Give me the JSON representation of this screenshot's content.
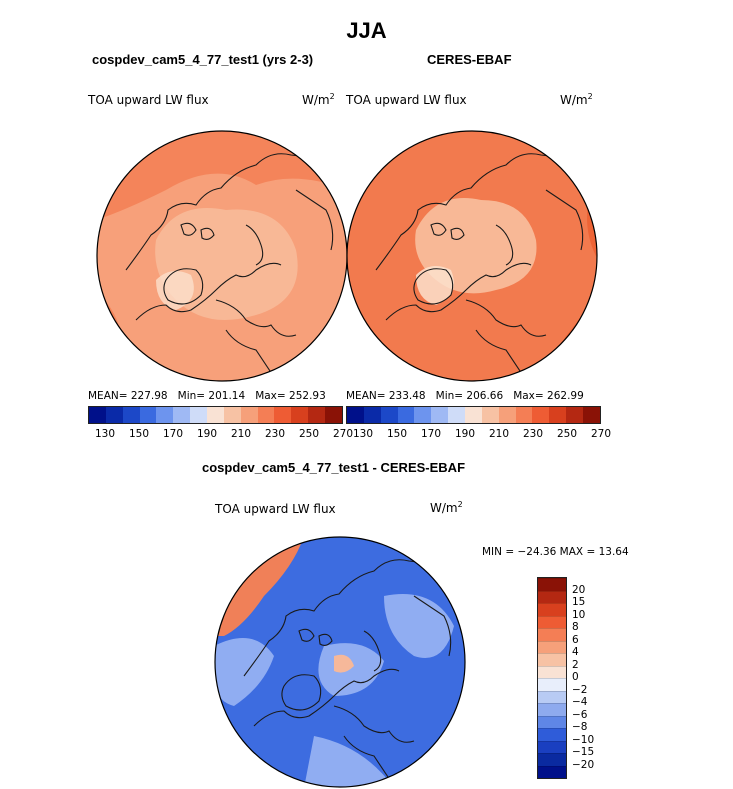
{
  "page": {
    "season": "JJA"
  },
  "panels": {
    "model": {
      "title": "cospdev_cam5_4_77_test1 (yrs 2-3)",
      "field": "TOA upward LW flux",
      "units_base": "W/m",
      "units_exp": "2",
      "mean_label": "MEAN=",
      "mean_value": "227.98",
      "min_label": "Min=",
      "min_value": "201.14",
      "max_label": "Max=",
      "max_value": "252.93"
    },
    "obs": {
      "title": "CERES-EBAF",
      "field": "TOA upward LW flux",
      "units_base": "W/m",
      "units_exp": "2",
      "mean_label": "MEAN=",
      "mean_value": "233.48",
      "min_label": "Min=",
      "min_value": "206.66",
      "max_label": "Max=",
      "max_value": "262.99"
    },
    "diff": {
      "title": "cospdev_cam5_4_77_test1 - CERES-EBAF",
      "field": "TOA upward LW flux",
      "units_base": "W/m",
      "units_exp": "2",
      "minmax_text": "MIN = −24.36 MAX =   13.64"
    }
  },
  "colorbars": {
    "abs_labels": [
      "130",
      "150",
      "170",
      "190",
      "210",
      "230",
      "250",
      "270"
    ],
    "abs_colors": [
      "#00108a",
      "#0a2aa8",
      "#1c48c8",
      "#3a6ae0",
      "#6d94ee",
      "#9fb9f4",
      "#cfdcf8",
      "#f9e2d4",
      "#f7c2a4",
      "#f6a07a",
      "#f47e55",
      "#ee5c34",
      "#d8401e",
      "#b42812",
      "#8a1206"
    ],
    "diff_labels": [
      "20",
      "15",
      "10",
      "8",
      "6",
      "4",
      "2",
      "0",
      "−2",
      "−4",
      "−6",
      "−8",
      "−10",
      "−15",
      "−20"
    ],
    "diff_colors": [
      "#8a1206",
      "#b42812",
      "#d8401e",
      "#ee5c34",
      "#f47e55",
      "#f6a07a",
      "#f7c2a4",
      "#f9e2d4",
      "#e8eefb",
      "#b8cbf4",
      "#8eaaee",
      "#5f86e6",
      "#2f5cd9",
      "#1a3fc0",
      "#0a2aa0",
      "#00108a"
    ]
  },
  "map_colors": {
    "model_fill": "#f7a07a",
    "model_inner": "#f8b896",
    "model_outer": "#f4845a",
    "obs_fill": "#f27a4e",
    "obs_inner": "#f8b896",
    "obs_outer": "#ee6436",
    "diff_fill": "#3d6ce0",
    "diff_light": "#9fb9f4",
    "diff_warm": "#f08058",
    "coast": "#1a1a1a"
  }
}
